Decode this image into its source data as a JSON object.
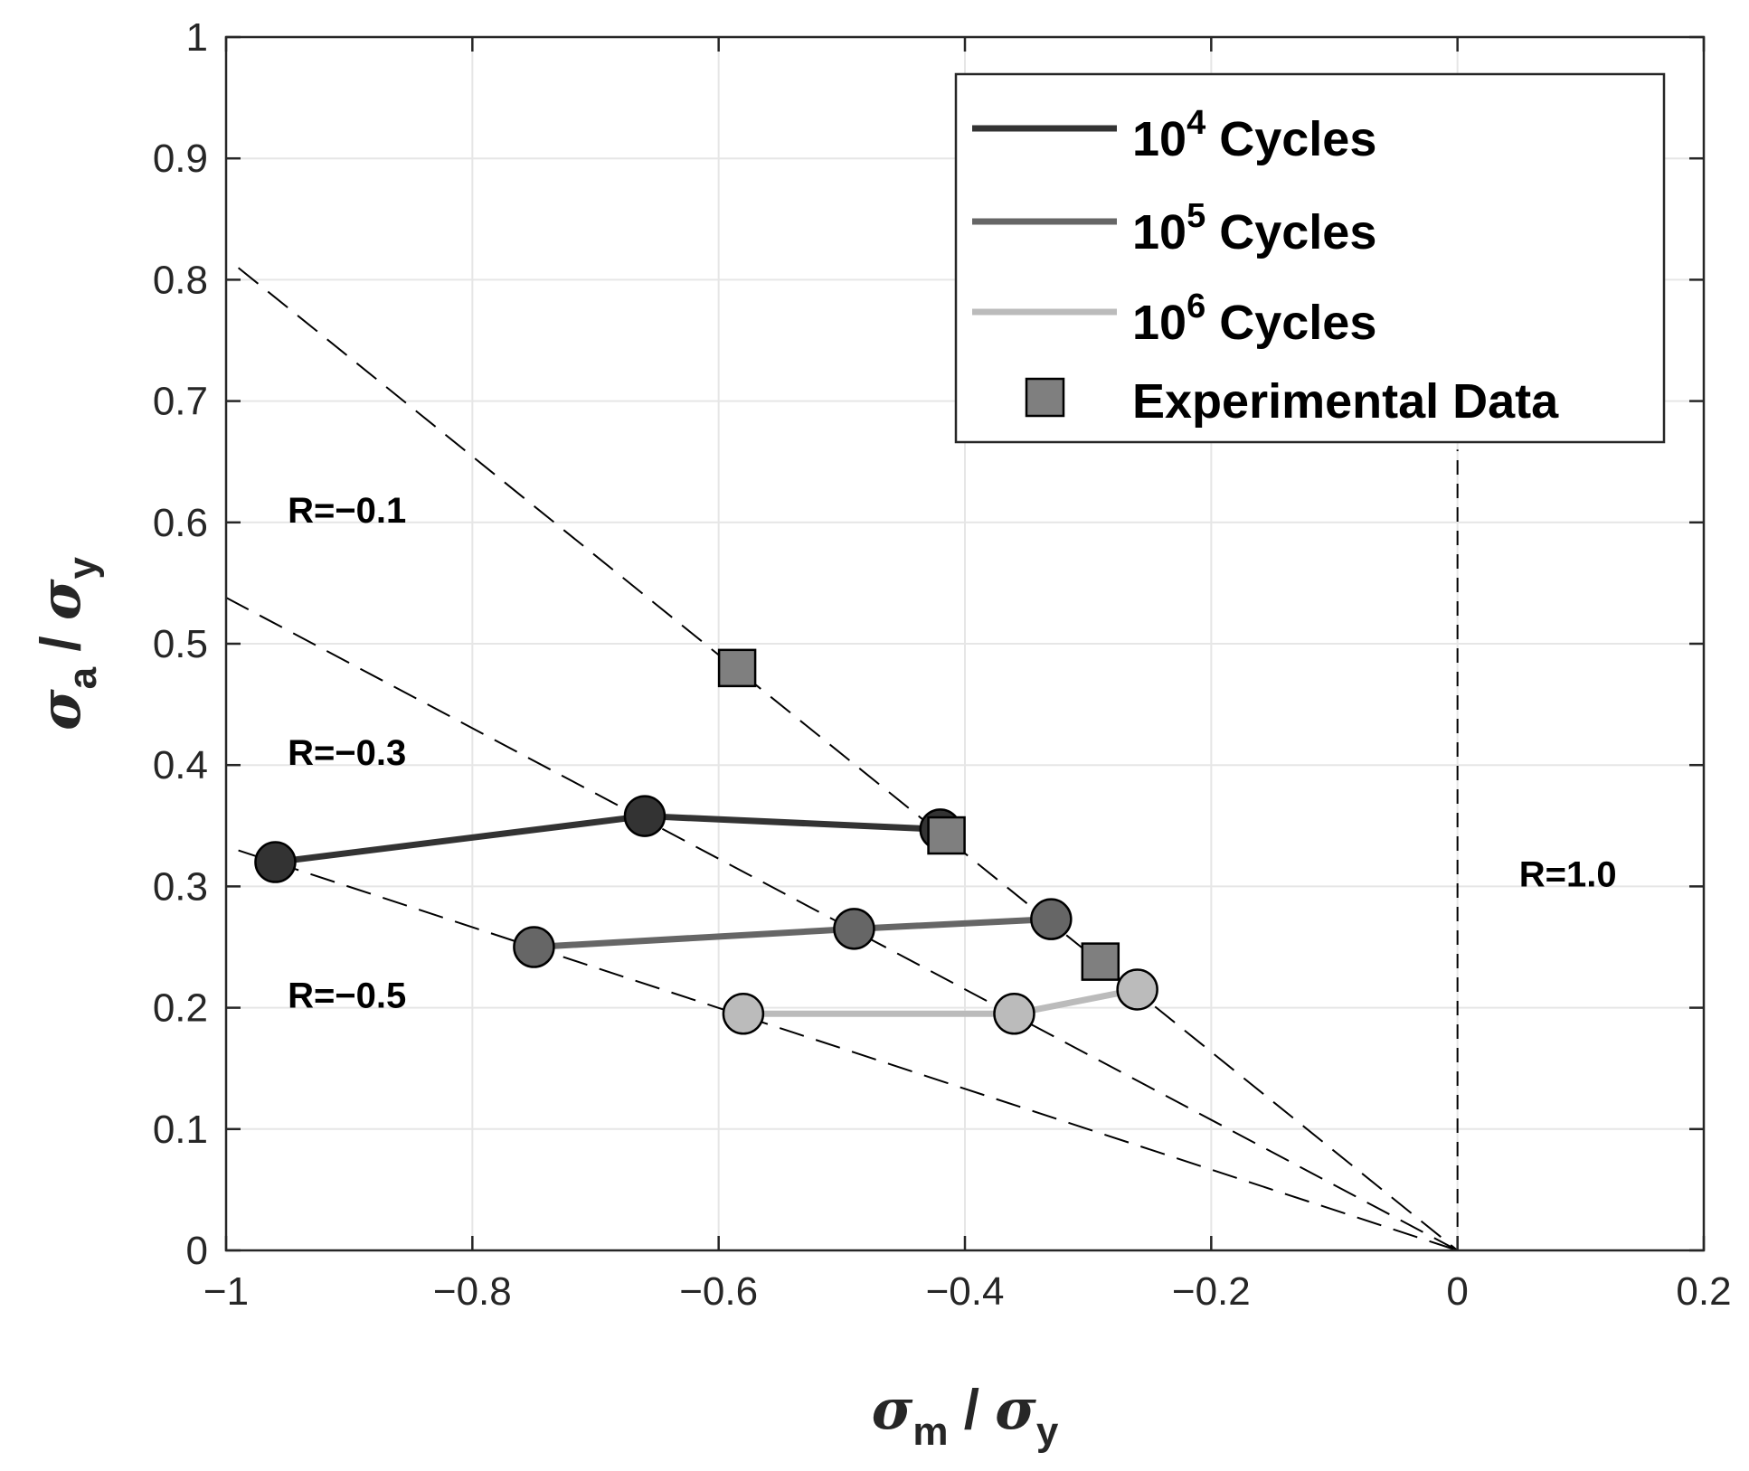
{
  "chart_data": {
    "type": "line",
    "title": "",
    "xlabel": {
      "symbol": "σ",
      "sub": "m",
      "sep": " / ",
      "symbol2": "σ",
      "sub2": "y"
    },
    "ylabel": {
      "symbol": "σ",
      "sub": "a",
      "sep": " / ",
      "symbol2": "σ",
      "sub2": "y"
    },
    "xlim": [
      -1,
      0.2
    ],
    "ylim": [
      0,
      1
    ],
    "grid": true,
    "legend_position": "top-right",
    "x_ticks": [
      -1,
      -0.8,
      -0.6,
      -0.4,
      -0.2,
      0,
      0.2
    ],
    "x_tick_labels": [
      "−1",
      "−0.8",
      "−0.6",
      "−0.4",
      "−0.2",
      "0",
      "0.2"
    ],
    "y_ticks": [
      0,
      0.1,
      0.2,
      0.3,
      0.4,
      0.5,
      0.6,
      0.7,
      0.8,
      0.9,
      1
    ],
    "y_tick_labels": [
      "0",
      "0.1",
      "0.2",
      "0.3",
      "0.4",
      "0.5",
      "0.6",
      "0.7",
      "0.8",
      "0.9",
      "1"
    ],
    "series": [
      {
        "name": "10^4 Cycles",
        "legend_base": "10",
        "legend_exp": "4",
        "legend_suffix": " Cycles",
        "color": "#333333",
        "x": [
          -0.96,
          -0.66,
          -0.42
        ],
        "y": [
          0.32,
          0.358,
          0.347
        ]
      },
      {
        "name": "10^5 Cycles",
        "legend_base": "10",
        "legend_exp": "5",
        "legend_suffix": " Cycles",
        "color": "#666666",
        "x": [
          -0.75,
          -0.49,
          -0.33
        ],
        "y": [
          0.25,
          0.265,
          0.273
        ]
      },
      {
        "name": "10^6 Cycles",
        "legend_base": "10",
        "legend_exp": "6",
        "legend_suffix": " Cycles",
        "color": "#bbbbbb",
        "x": [
          -0.58,
          -0.36,
          -0.26
        ],
        "y": [
          0.195,
          0.195,
          0.215
        ]
      }
    ],
    "experimental": {
      "name": "Experimental Data",
      "color": "#7f7f7f",
      "x": [
        -0.585,
        -0.415,
        -0.29
      ],
      "y": [
        0.48,
        0.342,
        0.238
      ]
    },
    "reference_lines": [
      {
        "label": "R=−0.1",
        "slope": -0.818,
        "x_start": -0.99,
        "label_x": -0.95,
        "label_y": 0.6
      },
      {
        "label": "R=−0.3",
        "slope": -0.538,
        "x_start": -1.0,
        "label_x": -0.95,
        "label_y": 0.4
      },
      {
        "label": "R=−0.5",
        "slope": -0.333,
        "x_start": -0.99,
        "label_x": -0.95,
        "label_y": 0.2
      },
      {
        "label": "R=1.0",
        "vertical_x": 0,
        "label_x": 0.05,
        "label_y": 0.3
      }
    ]
  }
}
